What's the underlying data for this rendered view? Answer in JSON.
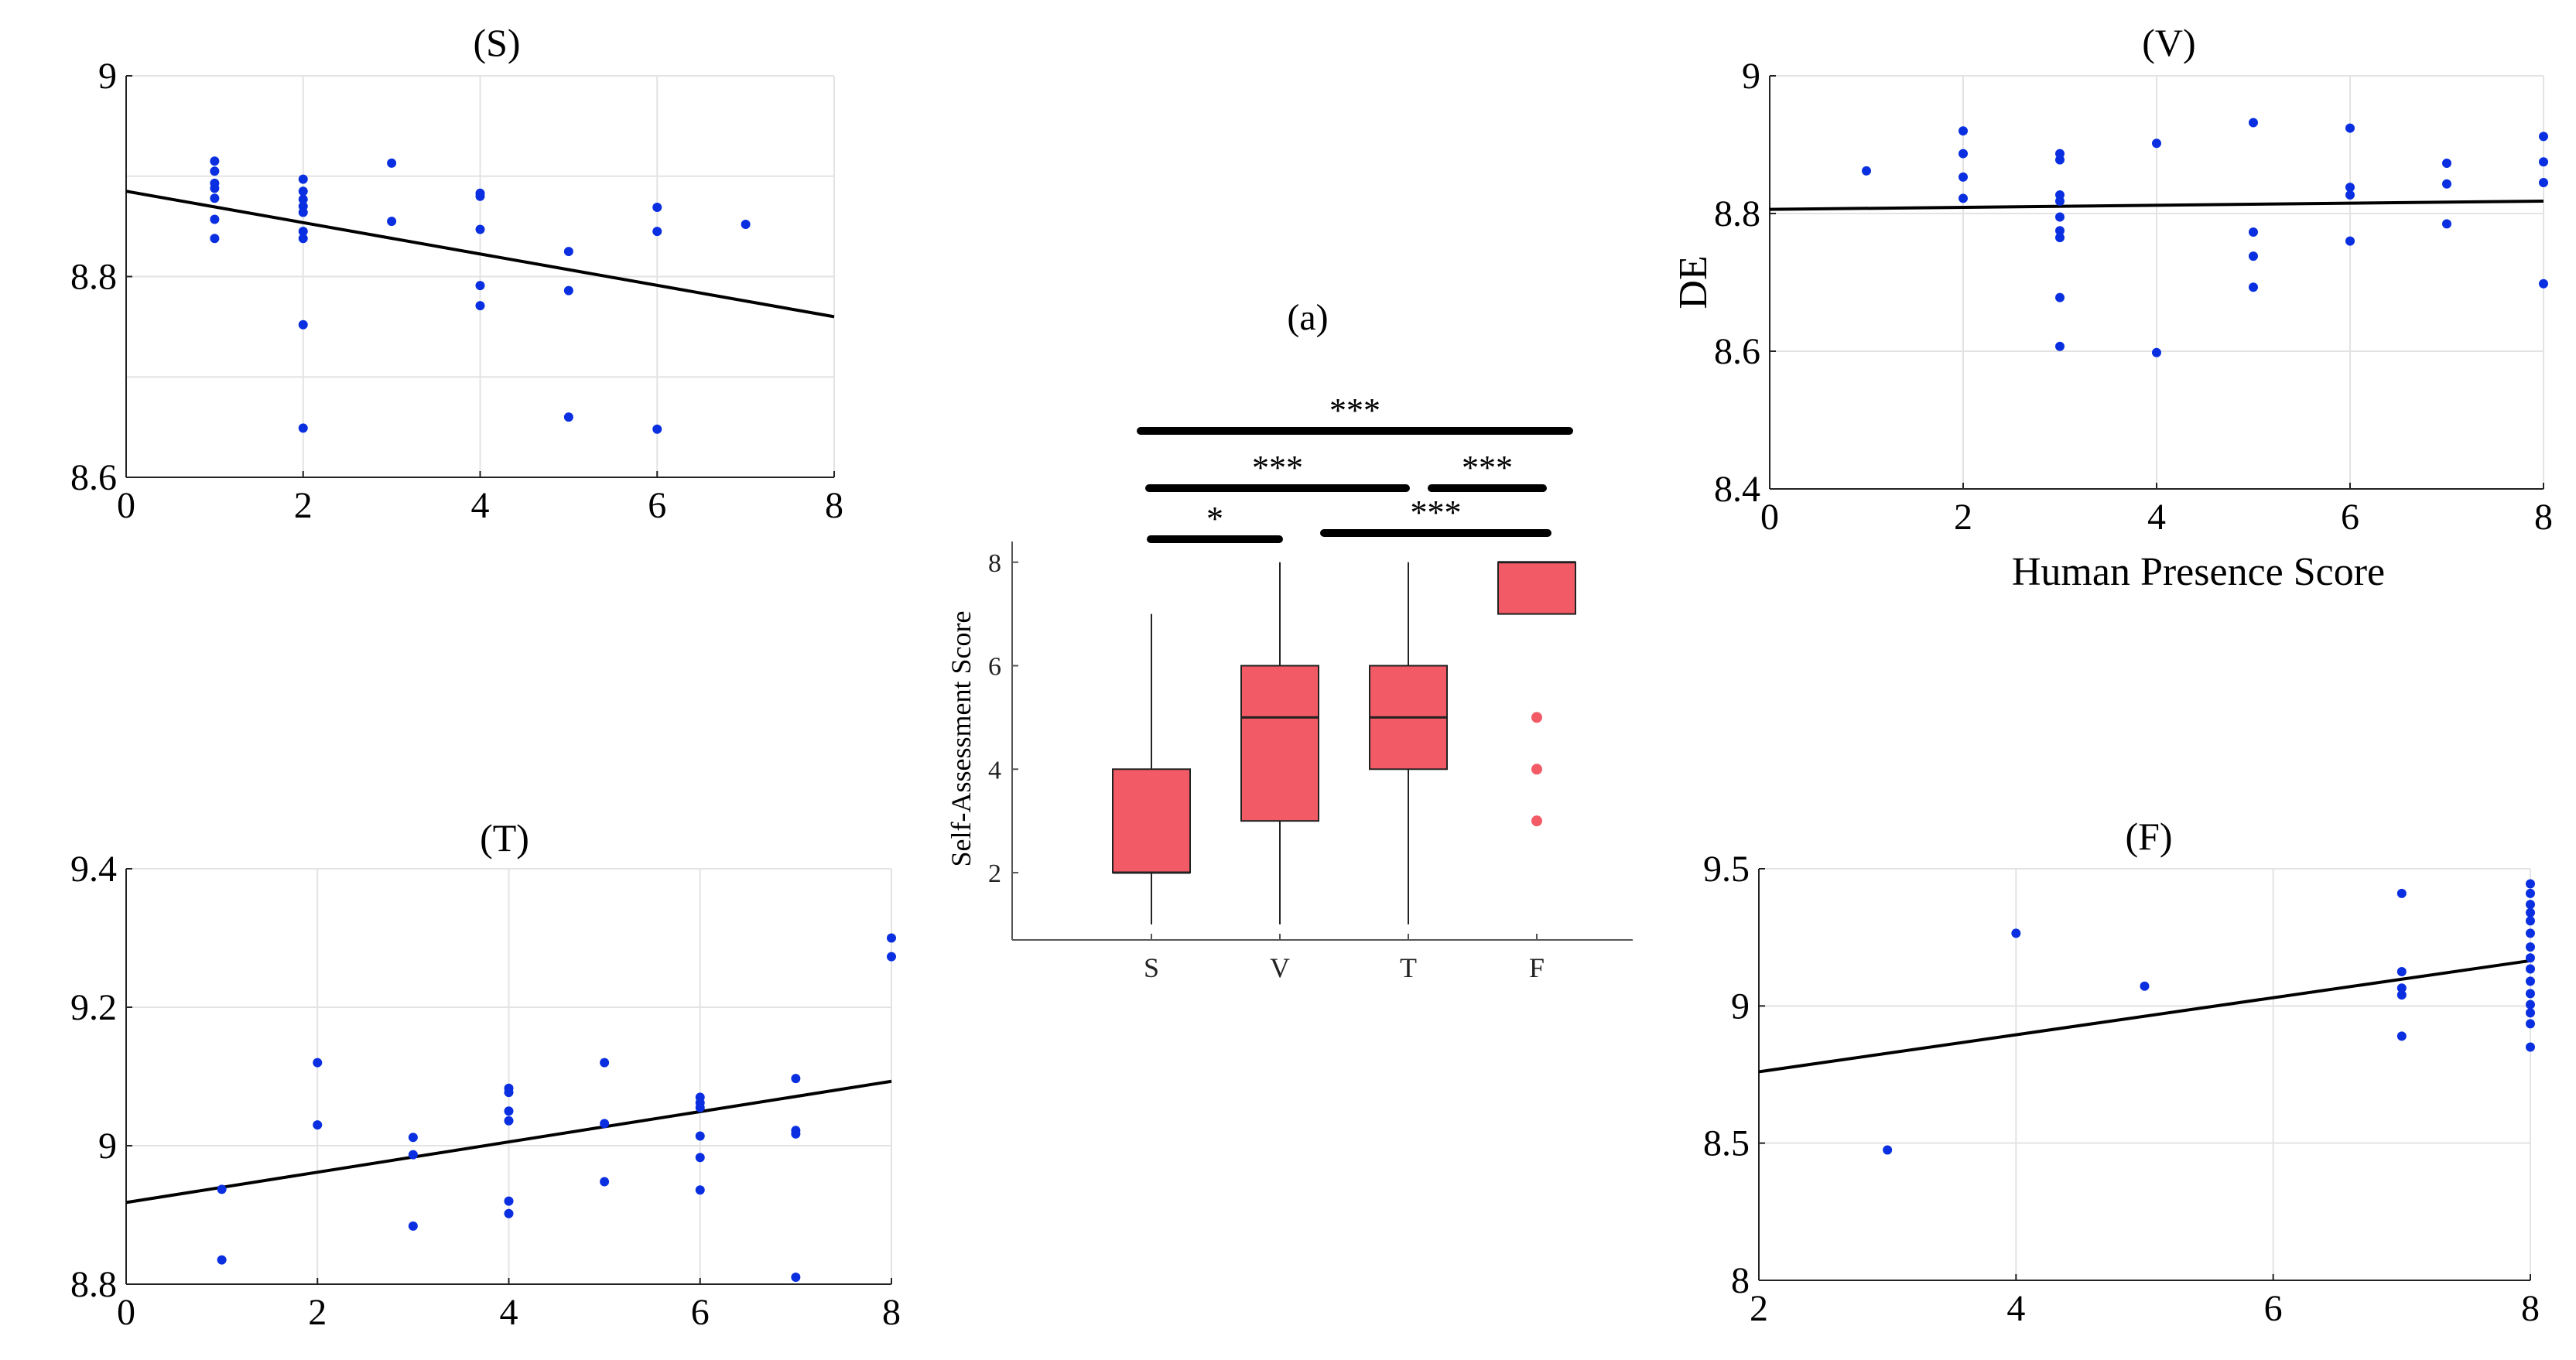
{
  "chart_data": [
    {
      "id": "S",
      "type": "scatter",
      "title": "(S)",
      "xlabel": "",
      "ylabel": "",
      "xlim": [
        0,
        8
      ],
      "ylim": [
        8.6,
        9.0
      ],
      "xticks": [
        0,
        2,
        4,
        6,
        8
      ],
      "yticks": [
        8.6,
        8.8,
        9.0
      ],
      "ytick_labels": [
        "8.6",
        "8.8",
        "9"
      ],
      "grid": true,
      "points": [
        [
          1,
          8.915
        ],
        [
          1,
          8.905
        ],
        [
          1,
          8.893
        ],
        [
          1,
          8.888
        ],
        [
          1,
          8.878
        ],
        [
          1,
          8.857
        ],
        [
          1,
          8.838
        ],
        [
          2,
          8.897
        ],
        [
          2,
          8.885
        ],
        [
          2,
          8.877
        ],
        [
          2,
          8.87
        ],
        [
          2,
          8.864
        ],
        [
          2,
          8.845
        ],
        [
          2,
          8.838
        ],
        [
          2,
          8.752
        ],
        [
          2,
          8.649
        ],
        [
          3,
          8.913
        ],
        [
          3,
          8.855
        ],
        [
          4,
          8.883
        ],
        [
          4,
          8.88
        ],
        [
          4,
          8.847
        ],
        [
          4,
          8.791
        ],
        [
          4,
          8.771
        ],
        [
          5,
          8.825
        ],
        [
          5,
          8.786
        ],
        [
          5,
          8.66
        ],
        [
          6,
          8.869
        ],
        [
          6,
          8.845
        ],
        [
          6,
          8.648
        ],
        [
          7,
          8.852
        ]
      ],
      "fit": [
        [
          0,
          8.885
        ],
        [
          8,
          8.76
        ]
      ]
    },
    {
      "id": "V",
      "type": "scatter",
      "title": "(V)",
      "xlabel": "Human Presence Score",
      "ylabel": "DE",
      "xlim": [
        0,
        8
      ],
      "ylim": [
        8.4,
        9.0
      ],
      "xticks": [
        0,
        2,
        4,
        6,
        8
      ],
      "yticks": [
        8.4,
        8.6,
        8.8,
        9.0
      ],
      "ytick_labels": [
        "8.4",
        "8.6",
        "8.8",
        "9"
      ],
      "grid": true,
      "points": [
        [
          1,
          8.862
        ],
        [
          2,
          8.92
        ],
        [
          2,
          8.887
        ],
        [
          2,
          8.853
        ],
        [
          2,
          8.822
        ],
        [
          3,
          8.887
        ],
        [
          3,
          8.878
        ],
        [
          3,
          8.827
        ],
        [
          3,
          8.818
        ],
        [
          3,
          8.795
        ],
        [
          3,
          8.775
        ],
        [
          3,
          8.765
        ],
        [
          3,
          8.678
        ],
        [
          3,
          8.607
        ],
        [
          4,
          8.902
        ],
        [
          4,
          8.598
        ],
        [
          5,
          8.932
        ],
        [
          5,
          8.773
        ],
        [
          5,
          8.738
        ],
        [
          5,
          8.693
        ],
        [
          6,
          8.924
        ],
        [
          6,
          8.838
        ],
        [
          6,
          8.827
        ],
        [
          6,
          8.76
        ],
        [
          7,
          8.873
        ],
        [
          7,
          8.843
        ],
        [
          7,
          8.785
        ],
        [
          8,
          8.912
        ],
        [
          8,
          8.875
        ],
        [
          8,
          8.845
        ],
        [
          8,
          8.698
        ]
      ],
      "fit": [
        [
          0,
          8.806
        ],
        [
          8,
          8.818
        ]
      ]
    },
    {
      "id": "T",
      "type": "scatter",
      "title": "(T)",
      "xlabel": "",
      "ylabel": "",
      "xlim": [
        0,
        8
      ],
      "ylim": [
        8.8,
        9.4
      ],
      "xticks": [
        0,
        2,
        4,
        6,
        8
      ],
      "yticks": [
        8.8,
        9.0,
        9.2,
        9.4
      ],
      "ytick_labels": [
        "8.8",
        "9",
        "9.2",
        "9.4"
      ],
      "grid": true,
      "points": [
        [
          1,
          8.937
        ],
        [
          1,
          8.835
        ],
        [
          2,
          9.12
        ],
        [
          2,
          9.03
        ],
        [
          3,
          9.012
        ],
        [
          3,
          8.987
        ],
        [
          3,
          8.884
        ],
        [
          4,
          9.083
        ],
        [
          4,
          9.077
        ],
        [
          4,
          9.05
        ],
        [
          4,
          9.036
        ],
        [
          4,
          8.92
        ],
        [
          4,
          8.902
        ],
        [
          5,
          9.12
        ],
        [
          5,
          9.032
        ],
        [
          5,
          8.948
        ],
        [
          6,
          9.07
        ],
        [
          6,
          9.062
        ],
        [
          6,
          9.055
        ],
        [
          6,
          9.014
        ],
        [
          6,
          8.983
        ],
        [
          6,
          8.936
        ],
        [
          7,
          9.097
        ],
        [
          7,
          9.022
        ],
        [
          7,
          9.017
        ],
        [
          7,
          8.81
        ],
        [
          8,
          9.3
        ],
        [
          8,
          9.273
        ]
      ],
      "fit": [
        [
          0,
          8.918
        ],
        [
          8,
          9.093
        ]
      ]
    },
    {
      "id": "F",
      "type": "scatter",
      "title": "(F)",
      "xlabel": "",
      "ylabel": "",
      "xlim": [
        2,
        8
      ],
      "ylim": [
        8.0,
        9.5
      ],
      "xticks": [
        2,
        4,
        6,
        8
      ],
      "yticks": [
        8.0,
        8.5,
        9.0,
        9.5
      ],
      "ytick_labels": [
        "8",
        "8.5",
        "9",
        "9.5"
      ],
      "grid": true,
      "points": [
        [
          3,
          8.475
        ],
        [
          4,
          9.265
        ],
        [
          5,
          9.072
        ],
        [
          7,
          9.41
        ],
        [
          7,
          9.125
        ],
        [
          7,
          9.065
        ],
        [
          7,
          9.04
        ],
        [
          7,
          8.89
        ],
        [
          8,
          9.445
        ],
        [
          8,
          9.41
        ],
        [
          8,
          9.37
        ],
        [
          8,
          9.34
        ],
        [
          8,
          9.31
        ],
        [
          8,
          9.265
        ],
        [
          8,
          9.215
        ],
        [
          8,
          9.175
        ],
        [
          8,
          9.135
        ],
        [
          8,
          9.09
        ],
        [
          8,
          9.045
        ],
        [
          8,
          9.005
        ],
        [
          8,
          8.975
        ],
        [
          8,
          8.935
        ],
        [
          8,
          8.85
        ]
      ],
      "fit": [
        [
          2,
          8.76
        ],
        [
          8,
          9.165
        ]
      ]
    },
    {
      "id": "a",
      "type": "box",
      "title": "(a)",
      "xlabel": "",
      "ylabel": "Self-Assessment Score",
      "ylim": [
        0.7,
        8.4
      ],
      "yticks": [
        2,
        4,
        6,
        8
      ],
      "ytick_labels": [
        "2",
        "4",
        "6",
        "8"
      ],
      "categories": [
        "S",
        "V",
        "T",
        "F"
      ],
      "boxes": [
        {
          "min": 1,
          "q1": 2,
          "median": 2,
          "q3": 4,
          "max": 7,
          "outliers": []
        },
        {
          "min": 1,
          "q1": 3,
          "median": 5,
          "q3": 6,
          "max": 8,
          "outliers": []
        },
        {
          "min": 1,
          "q1": 4,
          "median": 5,
          "q3": 6,
          "max": 8,
          "outliers": []
        },
        {
          "min": 7,
          "q1": 7,
          "median": 8,
          "q3": 8,
          "max": 8,
          "outliers": [
            5,
            4,
            3
          ]
        }
      ],
      "significance": [
        {
          "from": "S",
          "to": "V",
          "label": "*"
        },
        {
          "from": "V",
          "to": "F",
          "label": "***"
        },
        {
          "from": "S",
          "to": "T",
          "label": "***"
        },
        {
          "from": "T",
          "to": "F",
          "label": "***"
        },
        {
          "from": "S",
          "to": "F",
          "label": "***"
        }
      ]
    }
  ]
}
